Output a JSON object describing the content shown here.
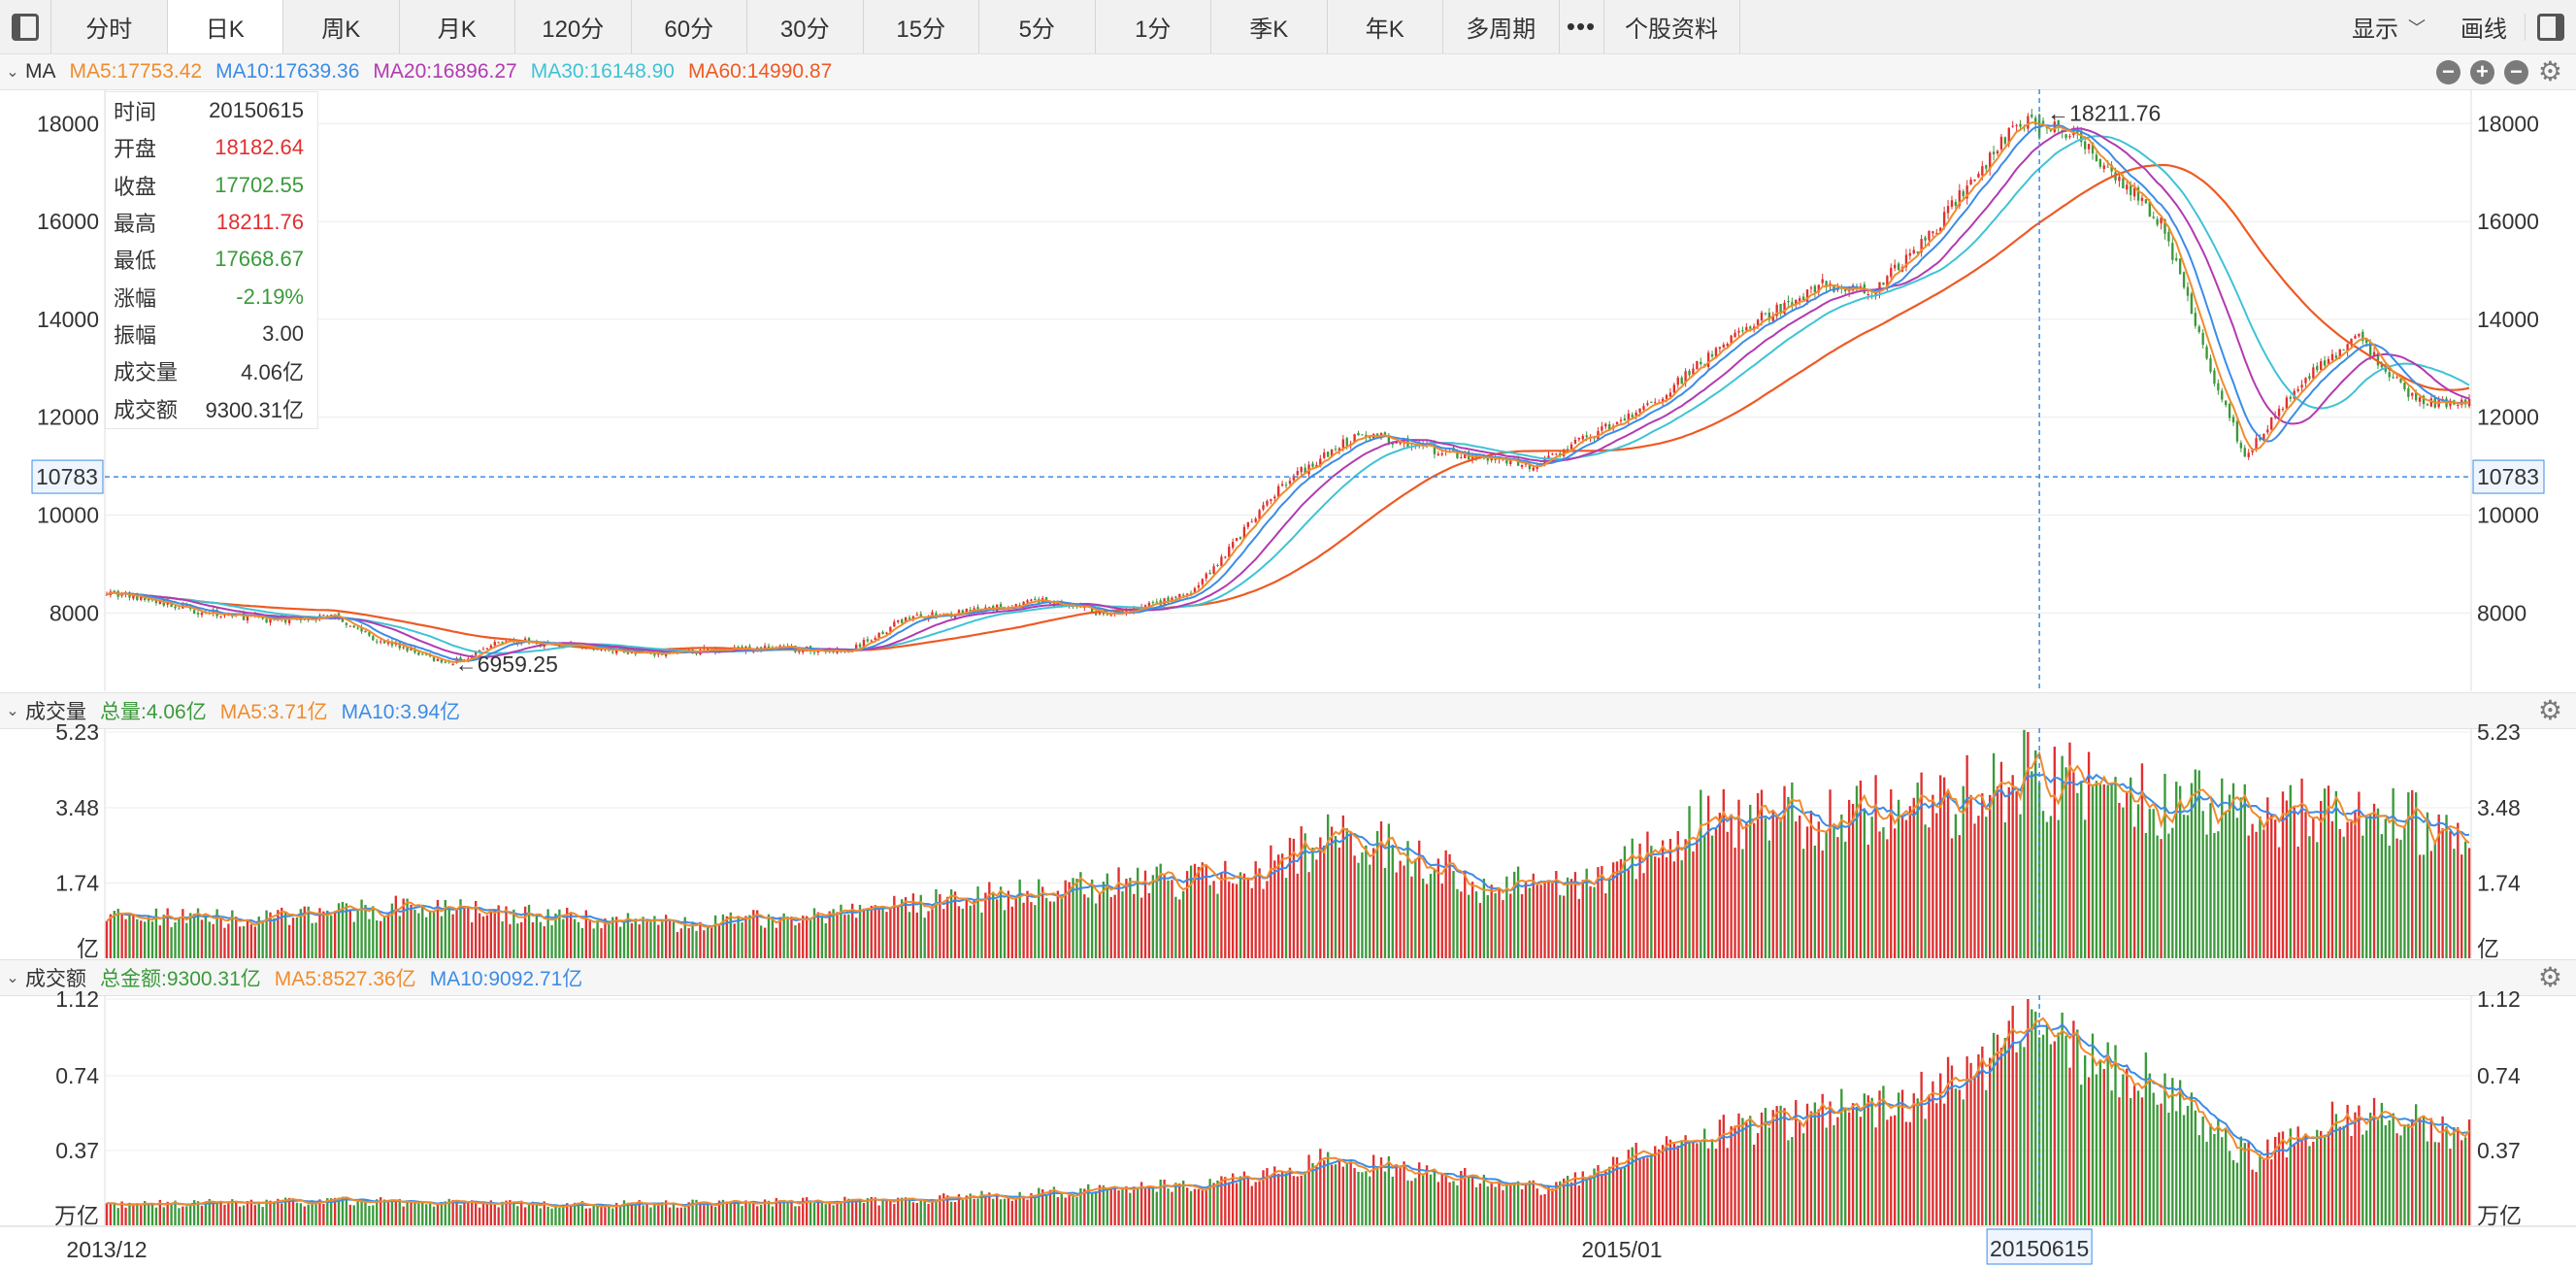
{
  "toolbar": {
    "tabs": [
      "分时",
      "日K",
      "周K",
      "月K",
      "120分",
      "60分",
      "30分",
      "15分",
      "5分",
      "1分",
      "季K",
      "年K",
      "多周期"
    ],
    "active_tab": "日K",
    "more": "•••",
    "info": "个股资料",
    "display": "显示",
    "draw": "画线"
  },
  "panels": {
    "price": {
      "name": "MA",
      "items": [
        {
          "text": "MA5:17753.42",
          "color": "#f08c2e"
        },
        {
          "text": "MA10:17639.36",
          "color": "#3c8ce6"
        },
        {
          "text": "MA20:16896.27",
          "color": "#b23ab0"
        },
        {
          "text": "MA30:16148.90",
          "color": "#3ec3d6"
        },
        {
          "text": "MA60:14990.87",
          "color": "#ee5a24"
        }
      ]
    },
    "volume": {
      "name": "成交量",
      "items": [
        {
          "text": "总量:4.06亿",
          "color": "#3a9a3a"
        },
        {
          "text": "MA5:3.71亿",
          "color": "#f08c2e"
        },
        {
          "text": "MA10:3.94亿",
          "color": "#3c8ce6"
        }
      ]
    },
    "amount": {
      "name": "成交额",
      "items": [
        {
          "text": "总金额:9300.31亿",
          "color": "#3a9a3a"
        },
        {
          "text": "MA5:8527.36亿",
          "color": "#f08c2e"
        },
        {
          "text": "MA10:9092.71亿",
          "color": "#3c8ce6"
        }
      ]
    }
  },
  "tooltip": [
    {
      "label": "时间",
      "value": "20150615",
      "color": "#333333"
    },
    {
      "label": "开盘",
      "value": "18182.64",
      "color": "#e03030"
    },
    {
      "label": "收盘",
      "value": "17702.55",
      "color": "#3a9a3a"
    },
    {
      "label": "最高",
      "value": "18211.76",
      "color": "#e03030"
    },
    {
      "label": "最低",
      "value": "17668.67",
      "color": "#3a9a3a"
    },
    {
      "label": "涨幅",
      "value": "-2.19%",
      "color": "#3a9a3a"
    },
    {
      "label": "振幅",
      "value": "3.00",
      "color": "#333333"
    },
    {
      "label": "成交量",
      "value": "4.06亿",
      "color": "#333333"
    },
    {
      "label": "成交额",
      "value": "9300.31亿",
      "color": "#333333"
    }
  ],
  "chart_data": {
    "type": "candlestick",
    "x_labels": [
      "2013/12",
      "2015/01"
    ],
    "selected_date": "20150615",
    "crosshair_price": "10783",
    "annotations": [
      "←18211.76",
      "←6959.25"
    ],
    "price_axis": {
      "ticks": [
        8000,
        10000,
        12000,
        14000,
        16000,
        18000
      ],
      "range": [
        6400,
        18700
      ]
    },
    "volume_axis": {
      "ticks": [
        "1.74",
        "3.48",
        "5.23"
      ],
      "unit": "亿",
      "range": [
        0,
        5.23
      ]
    },
    "amount_axis": {
      "ticks": [
        "0.37",
        "0.74",
        "1.12"
      ],
      "unit": "万亿",
      "range": [
        0,
        1.12
      ]
    },
    "close_anchors": [
      [
        0,
        8450
      ],
      [
        25,
        8020
      ],
      [
        45,
        7850
      ],
      [
        60,
        7950
      ],
      [
        70,
        7500
      ],
      [
        90,
        6960
      ],
      [
        105,
        7450
      ],
      [
        140,
        7180
      ],
      [
        175,
        7290
      ],
      [
        195,
        7200
      ],
      [
        210,
        7900
      ],
      [
        230,
        8050
      ],
      [
        245,
        8250
      ],
      [
        265,
        7950
      ],
      [
        285,
        8400
      ],
      [
        290,
        8850
      ],
      [
        310,
        10700
      ],
      [
        330,
        11700
      ],
      [
        350,
        11300
      ],
      [
        375,
        11000
      ],
      [
        390,
        11600
      ],
      [
        405,
        12200
      ],
      [
        430,
        13800
      ],
      [
        450,
        14700
      ],
      [
        465,
        14600
      ],
      [
        480,
        15800
      ],
      [
        500,
        17800
      ],
      [
        508,
        18150
      ],
      [
        518,
        17700
      ],
      [
        540,
        16000
      ],
      [
        553,
        13000
      ],
      [
        562,
        11200
      ],
      [
        578,
        12800
      ],
      [
        592,
        13600
      ],
      [
        607,
        12300
      ],
      [
        621,
        12300
      ]
    ],
    "volume_anchors": [
      [
        0,
        1.0
      ],
      [
        40,
        0.9
      ],
      [
        80,
        1.2
      ],
      [
        110,
        1.0
      ],
      [
        150,
        0.8
      ],
      [
        190,
        1.0
      ],
      [
        210,
        1.2
      ],
      [
        240,
        1.5
      ],
      [
        280,
        1.8
      ],
      [
        300,
        1.9
      ],
      [
        320,
        2.8
      ],
      [
        340,
        2.5
      ],
      [
        360,
        1.7
      ],
      [
        390,
        1.7
      ],
      [
        420,
        3.2
      ],
      [
        450,
        3.3
      ],
      [
        480,
        3.5
      ],
      [
        505,
        4.3
      ],
      [
        520,
        4.0
      ],
      [
        540,
        3.6
      ],
      [
        570,
        3.3
      ],
      [
        590,
        3.6
      ],
      [
        621,
        2.8
      ]
    ],
    "amount_anchors": [
      [
        0,
        0.1
      ],
      [
        60,
        0.12
      ],
      [
        120,
        0.1
      ],
      [
        200,
        0.12
      ],
      [
        240,
        0.15
      ],
      [
        280,
        0.2
      ],
      [
        310,
        0.25
      ],
      [
        320,
        0.33
      ],
      [
        340,
        0.28
      ],
      [
        380,
        0.18
      ],
      [
        410,
        0.4
      ],
      [
        450,
        0.55
      ],
      [
        480,
        0.65
      ],
      [
        505,
        0.98
      ],
      [
        520,
        0.85
      ],
      [
        540,
        0.7
      ],
      [
        555,
        0.45
      ],
      [
        565,
        0.32
      ],
      [
        580,
        0.5
      ],
      [
        600,
        0.55
      ],
      [
        621,
        0.45
      ]
    ],
    "bars_count": 622,
    "colors": {
      "up": "#e03030",
      "down": "#3a9a3a",
      "ma5": "#f08c2e",
      "ma10": "#3c8ce6",
      "ma20": "#b23ab0",
      "ma30": "#3ec3d6",
      "ma60": "#ee5a24",
      "crosshair": "#3c8ce6"
    }
  }
}
